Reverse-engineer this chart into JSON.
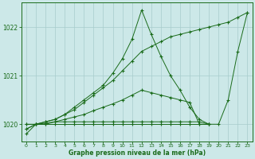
{
  "line_color": "#1a6b1a",
  "bg_color": "#cce8e8",
  "grid_color": "#a8cccc",
  "xlabel": "Graphe pression niveau de la mer (hPa)",
  "xlim": [
    -0.5,
    23.5
  ],
  "ylim": [
    1019.65,
    1022.5
  ],
  "yticks": [
    1020,
    1021,
    1022
  ],
  "xticks": [
    0,
    1,
    2,
    3,
    4,
    5,
    6,
    7,
    8,
    9,
    10,
    11,
    12,
    13,
    14,
    15,
    16,
    17,
    18,
    19,
    20,
    21,
    22,
    23
  ],
  "series": [
    [
      1019.8,
      1020.0,
      1020.05,
      1020.1,
      1020.2,
      1020.35,
      1020.5,
      1020.65,
      1020.8,
      1021.05,
      1021.35,
      1021.75,
      1022.35,
      1021.85,
      1021.4,
      1021.0,
      1020.7,
      1020.35,
      1020.1,
      1020.0,
      1020.0,
      1020.5,
      1021.5,
      1022.3
    ],
    [
      1019.9,
      1020.0,
      1020.05,
      1020.1,
      1020.2,
      1020.3,
      1020.45,
      1020.6,
      1020.75,
      1020.9,
      1021.1,
      1021.3,
      1021.5,
      1021.6,
      1021.7,
      1021.8,
      1021.85,
      1021.9,
      1021.95,
      1022.0,
      1022.05,
      1022.1,
      1022.2,
      1022.3
    ],
    [
      1019.9,
      1020.0,
      1020.02,
      1020.05,
      1020.1,
      1020.15,
      1020.2,
      1020.28,
      1020.35,
      1020.42,
      1020.5,
      1020.6,
      1020.7,
      1020.65,
      1020.6,
      1020.55,
      1020.5,
      1020.45,
      1020.0,
      1020.0,
      null,
      null,
      null,
      null
    ],
    [
      1020.0,
      1020.0,
      1020.0,
      1020.0,
      1020.0,
      1020.0,
      1020.0,
      1020.0,
      1020.0,
      1020.0,
      1020.0,
      1020.0,
      1020.0,
      1020.0,
      1020.0,
      1020.0,
      1020.0,
      1020.0,
      1020.0,
      1020.0,
      null,
      null,
      null,
      null
    ],
    [
      1020.0,
      1020.0,
      1020.0,
      1020.05,
      1020.05,
      1020.05,
      1020.05,
      1020.05,
      1020.05,
      1020.05,
      1020.05,
      1020.05,
      1020.05,
      1020.05,
      1020.05,
      1020.05,
      1020.05,
      1020.05,
      1020.05,
      1020.0,
      null,
      null,
      null,
      null
    ]
  ]
}
